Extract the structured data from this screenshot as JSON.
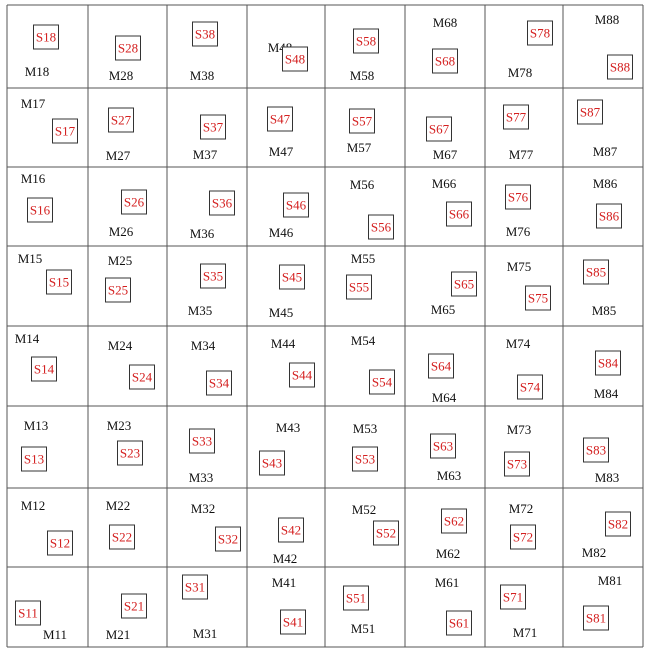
{
  "colors": {
    "sensor_text": "#d42020",
    "label_text": "#111111",
    "grid_line": "#555555"
  },
  "grid": {
    "rows": 8,
    "columns": 8
  },
  "cells": [
    {
      "m": "M18",
      "s": "S18"
    },
    {
      "m": "M28",
      "s": "S28"
    },
    {
      "m": "M38",
      "s": "S38"
    },
    {
      "m": "M48",
      "s": "S48"
    },
    {
      "m": "M58",
      "s": "S58"
    },
    {
      "m": "M68",
      "s": "S68"
    },
    {
      "m": "M78",
      "s": "S78"
    },
    {
      "m": "M88",
      "s": "S88"
    },
    {
      "m": "M17",
      "s": "S17"
    },
    {
      "m": "M27",
      "s": "S27"
    },
    {
      "m": "M37",
      "s": "S37"
    },
    {
      "m": "M47",
      "s": "S47"
    },
    {
      "m": "M57",
      "s": "S57"
    },
    {
      "m": "M67",
      "s": "S67"
    },
    {
      "m": "M77",
      "s": "S77"
    },
    {
      "m": "M87",
      "s": "S87"
    },
    {
      "m": "M16",
      "s": "S16"
    },
    {
      "m": "M26",
      "s": "S26"
    },
    {
      "m": "M36",
      "s": "S36"
    },
    {
      "m": "M46",
      "s": "S46"
    },
    {
      "m": "M56",
      "s": "S56"
    },
    {
      "m": "M66",
      "s": "S66"
    },
    {
      "m": "M76",
      "s": "S76"
    },
    {
      "m": "M86",
      "s": "S86"
    },
    {
      "m": "M15",
      "s": "S15"
    },
    {
      "m": "M25",
      "s": "S25"
    },
    {
      "m": "M35",
      "s": "S35"
    },
    {
      "m": "M45",
      "s": "S45"
    },
    {
      "m": "M55",
      "s": "S55"
    },
    {
      "m": "M65",
      "s": "S65"
    },
    {
      "m": "M75",
      "s": "S75"
    },
    {
      "m": "M85",
      "s": "S85"
    },
    {
      "m": "M14",
      "s": "S14"
    },
    {
      "m": "M24",
      "s": "S24"
    },
    {
      "m": "M34",
      "s": "S34"
    },
    {
      "m": "M44",
      "s": "S44"
    },
    {
      "m": "M54",
      "s": "S54"
    },
    {
      "m": "M64",
      "s": "S64"
    },
    {
      "m": "M74",
      "s": "S74"
    },
    {
      "m": "M84",
      "s": "S84"
    },
    {
      "m": "M13",
      "s": "S13"
    },
    {
      "m": "M23",
      "s": "S23"
    },
    {
      "m": "M33",
      "s": "S33"
    },
    {
      "m": "M43",
      "s": "S43"
    },
    {
      "m": "M53",
      "s": "S53"
    },
    {
      "m": "M63",
      "s": "S63"
    },
    {
      "m": "M73",
      "s": "S73"
    },
    {
      "m": "M83",
      "s": "S83"
    },
    {
      "m": "M12",
      "s": "S12"
    },
    {
      "m": "M22",
      "s": "S22"
    },
    {
      "m": "M32",
      "s": "S32"
    },
    {
      "m": "M42",
      "s": "S42"
    },
    {
      "m": "M52",
      "s": "S52"
    },
    {
      "m": "M62",
      "s": "S62"
    },
    {
      "m": "M72",
      "s": "S72"
    },
    {
      "m": "M82",
      "s": "S82"
    },
    {
      "m": "M11",
      "s": "S11"
    },
    {
      "m": "M21",
      "s": "S21"
    },
    {
      "m": "M31",
      "s": "S31"
    },
    {
      "m": "M41",
      "s": "S41"
    },
    {
      "m": "M51",
      "s": "S51"
    },
    {
      "m": "M61",
      "s": "S61"
    },
    {
      "m": "M71",
      "s": "S71"
    },
    {
      "m": "M81",
      "s": "S81"
    }
  ]
}
